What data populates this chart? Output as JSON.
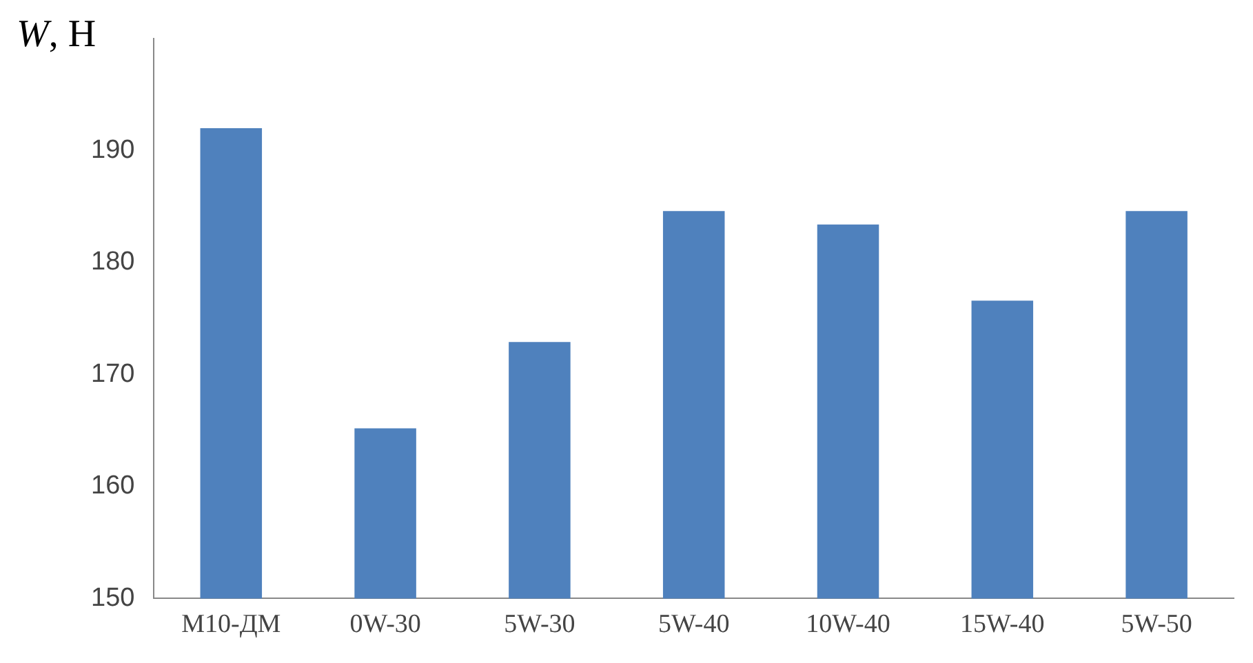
{
  "chart_data": {
    "type": "bar",
    "ylabel": "W, Н",
    "categories": [
      "M10-ДМ",
      "0W-30",
      "5W-30",
      "5W-40",
      "10W-40",
      "15W-40",
      "5W-50"
    ],
    "series": [
      {
        "color": "#4f81bd",
        "values": [
          192,
          165.2,
          172.9,
          184.6,
          183.4,
          176.6,
          184.6
        ]
      }
    ],
    "ylim": [
      150,
      200
    ],
    "yticks": [
      150,
      160,
      170,
      180,
      190
    ],
    "grid": false,
    "legend": false
  }
}
